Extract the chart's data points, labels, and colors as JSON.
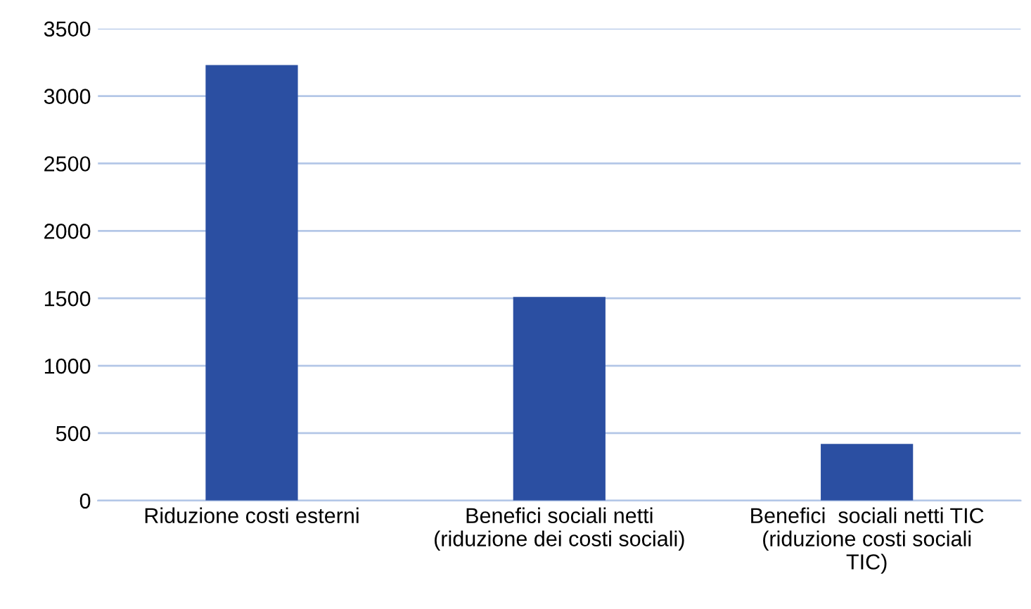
{
  "chart_data": {
    "type": "bar",
    "categories": [
      "Riduzione costi esterni",
      "Benefici sociali netti\n(riduzione dei costi sociali)",
      "Benefici  sociali netti TIC\n(riduzione costi sociali\nTIC)"
    ],
    "values": [
      3230,
      1510,
      420
    ],
    "color": "#2b4fa2",
    "ylim": [
      0,
      3500
    ],
    "yticks": [
      0,
      500,
      1000,
      1500,
      2000,
      2500,
      3000,
      3500
    ],
    "grid": "y"
  }
}
